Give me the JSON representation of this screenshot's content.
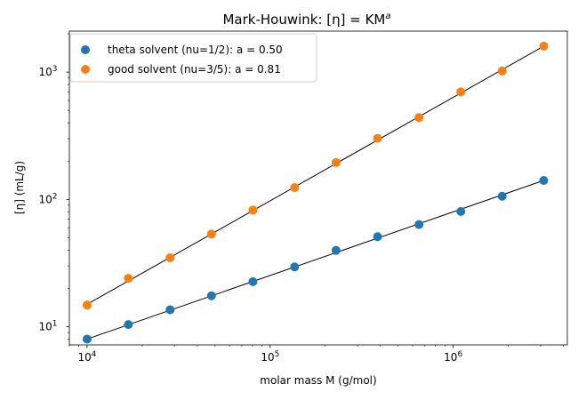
{
  "chart_data": {
    "type": "scatter",
    "title": "Mark-Houwink: [η] = KM",
    "title_superscript": "a",
    "xlabel": "molar mass M (g/mol)",
    "ylabel": "[η] (mL/g)",
    "xscale": "log",
    "yscale": "log",
    "xlim": [
      8000,
      4200000
    ],
    "ylim": [
      7.2,
      2100
    ],
    "xticks": [
      {
        "value": 10000,
        "base": "10",
        "exp": "4"
      },
      {
        "value": 100000,
        "base": "10",
        "exp": "5"
      },
      {
        "value": 1000000,
        "base": "10",
        "exp": "6"
      }
    ],
    "yticks": [
      {
        "value": 10,
        "base": "10",
        "exp": "1"
      },
      {
        "value": 100,
        "base": "10",
        "exp": "2"
      },
      {
        "value": 1000,
        "base": "10",
        "exp": "3"
      }
    ],
    "grid": false,
    "legend_position": "top-left",
    "x": [
      10000,
      16800,
      28400,
      47800,
      80500,
      136000,
      229000,
      386000,
      650000,
      1100000,
      1850000,
      3120000
    ],
    "series": [
      {
        "name": "theta solvent (nu=1/2): a = 0.50",
        "color": "#1f77b4",
        "values": [
          8.0,
          10.4,
          13.6,
          17.5,
          22.6,
          29.5,
          39.8,
          51.0,
          63.5,
          80.5,
          106,
          141
        ],
        "fit": [
          8.0,
          141
        ]
      },
      {
        "name": "good solvent (nu=3/5): a = 0.81",
        "color": "#ff7f0e",
        "values": [
          14.8,
          24.0,
          34.8,
          53.5,
          82.5,
          124,
          195,
          302,
          440,
          700,
          1020,
          1600
        ],
        "fit": [
          15.0,
          1600
        ]
      }
    ]
  }
}
